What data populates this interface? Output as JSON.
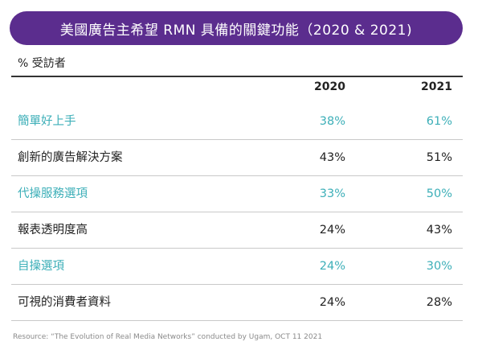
{
  "colors": {
    "title_bg": "#5b2d8e",
    "highlight": "#3dafb8",
    "text": "#222222"
  },
  "chart_data": {
    "type": "table",
    "title": "美國廣告主希望 RMN 具備的關鍵功能（2020 & 2021)",
    "unit_label": "% 受訪者",
    "columns": [
      "2020",
      "2021"
    ],
    "rows": [
      {
        "label": "簡單好上手",
        "values": [
          "38%",
          "61%"
        ],
        "highlight": true
      },
      {
        "label": "創新的廣告解決方案",
        "values": [
          "43%",
          "51%"
        ],
        "highlight": false
      },
      {
        "label": "代操服務選項",
        "values": [
          "33%",
          "50%"
        ],
        "highlight": true
      },
      {
        "label": "報表透明度高",
        "values": [
          "24%",
          "43%"
        ],
        "highlight": false
      },
      {
        "label": "自操選項",
        "values": [
          "24%",
          "30%"
        ],
        "highlight": true
      },
      {
        "label": "可視的消費者資料",
        "values": [
          "24%",
          "28%"
        ],
        "highlight": false
      }
    ],
    "source": "Resource: “The Evolution of Real Media Networks” conducted by Ugam, OCT 11 2021"
  }
}
